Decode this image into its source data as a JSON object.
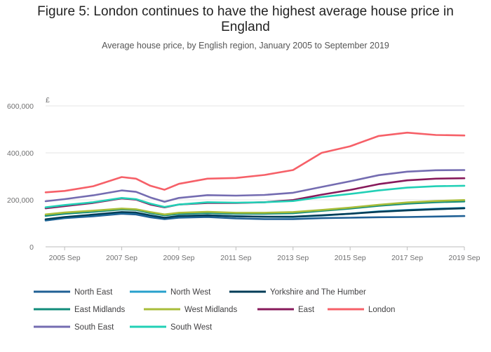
{
  "header": {
    "title_line1": "Figure 5: London continues to have the highest average house price in",
    "title_line2": "England",
    "subtitle": "Average house price, by English region, January 2005 to September 2019"
  },
  "chart_data": {
    "type": "line",
    "title": "Figure 5: London continues to have the highest average house price in England",
    "subtitle": "Average house price, by English region, January 2005 to September 2019",
    "xlabel": "",
    "ylabel": "£",
    "ylim": [
      0,
      600000
    ],
    "xlim": [
      "2005-01",
      "2019-09"
    ],
    "y_ticks": [
      0,
      200000,
      400000,
      600000
    ],
    "y_tick_labels": [
      "0",
      "200,000",
      "400,000",
      "600,000"
    ],
    "x_ticks": [
      "2005-09",
      "2007-09",
      "2009-09",
      "2011-09",
      "2013-09",
      "2015-09",
      "2017-09",
      "2019-09"
    ],
    "x_tick_labels": [
      "2005 Sep",
      "2007 Sep",
      "2009 Sep",
      "2011 Sep",
      "2013 Sep",
      "2015 Sep",
      "2017 Sep",
      "2019 Sep"
    ],
    "grid": true,
    "legend_position": "bottom",
    "x": [
      "2005-01",
      "2005-09",
      "2006-09",
      "2007-09",
      "2008-03",
      "2008-09",
      "2009-03",
      "2009-09",
      "2010-09",
      "2011-09",
      "2012-09",
      "2013-09",
      "2014-09",
      "2015-09",
      "2016-09",
      "2017-09",
      "2018-09",
      "2019-09"
    ],
    "series": [
      {
        "name": "North East",
        "color": "#206095",
        "values": [
          112000,
          122000,
          130000,
          141000,
          138000,
          126000,
          118000,
          124000,
          127000,
          121000,
          118000,
          118000,
          122000,
          124000,
          126000,
          127000,
          129000,
          131000
        ]
      },
      {
        "name": "North West",
        "color": "#27a0cc",
        "values": [
          116000,
          126000,
          136000,
          147000,
          145000,
          133000,
          124000,
          130000,
          134000,
          130000,
          128000,
          127000,
          133000,
          141000,
          151000,
          157000,
          162000,
          166000
        ]
      },
      {
        "name": "Yorkshire and The Humber",
        "color": "#003c57",
        "values": [
          117000,
          127000,
          137000,
          148000,
          146000,
          134000,
          124000,
          131000,
          134000,
          130000,
          128000,
          128000,
          134000,
          141000,
          149000,
          155000,
          160000,
          164000
        ]
      },
      {
        "name": "East Midlands",
        "color": "#118c7b",
        "values": [
          132000,
          141000,
          149000,
          159000,
          157000,
          144000,
          134000,
          140000,
          144000,
          141000,
          141000,
          143000,
          153000,
          163000,
          175000,
          184000,
          190000,
          193000
        ]
      },
      {
        "name": "West Midlands",
        "color": "#a8bd3a",
        "values": [
          138000,
          146000,
          154000,
          163000,
          160000,
          148000,
          138000,
          145000,
          149000,
          145000,
          145000,
          148000,
          157000,
          167000,
          179000,
          189000,
          195000,
          199000
        ]
      },
      {
        "name": "East",
        "color": "#871a5b",
        "values": [
          164000,
          173000,
          187000,
          206000,
          201000,
          180000,
          168000,
          180000,
          187000,
          187000,
          190000,
          199000,
          222000,
          242000,
          267000,
          283000,
          290000,
          292000
        ]
      },
      {
        "name": "London",
        "color": "#f66068",
        "values": [
          232000,
          238000,
          258000,
          297000,
          290000,
          260000,
          243000,
          268000,
          290000,
          293000,
          306000,
          327000,
          400000,
          428000,
          472000,
          486000,
          476000,
          474000
        ]
      },
      {
        "name": "South East",
        "color": "#746cb1",
        "values": [
          194000,
          203000,
          219000,
          240000,
          234000,
          210000,
          192000,
          208000,
          220000,
          218000,
          221000,
          230000,
          255000,
          279000,
          305000,
          320000,
          326000,
          327000
        ]
      },
      {
        "name": "South West",
        "color": "#22d0b6",
        "values": [
          168000,
          178000,
          190000,
          208000,
          203000,
          184000,
          170000,
          180000,
          190000,
          188000,
          190000,
          195000,
          212000,
          225000,
          240000,
          252000,
          258000,
          260000
        ]
      }
    ]
  }
}
